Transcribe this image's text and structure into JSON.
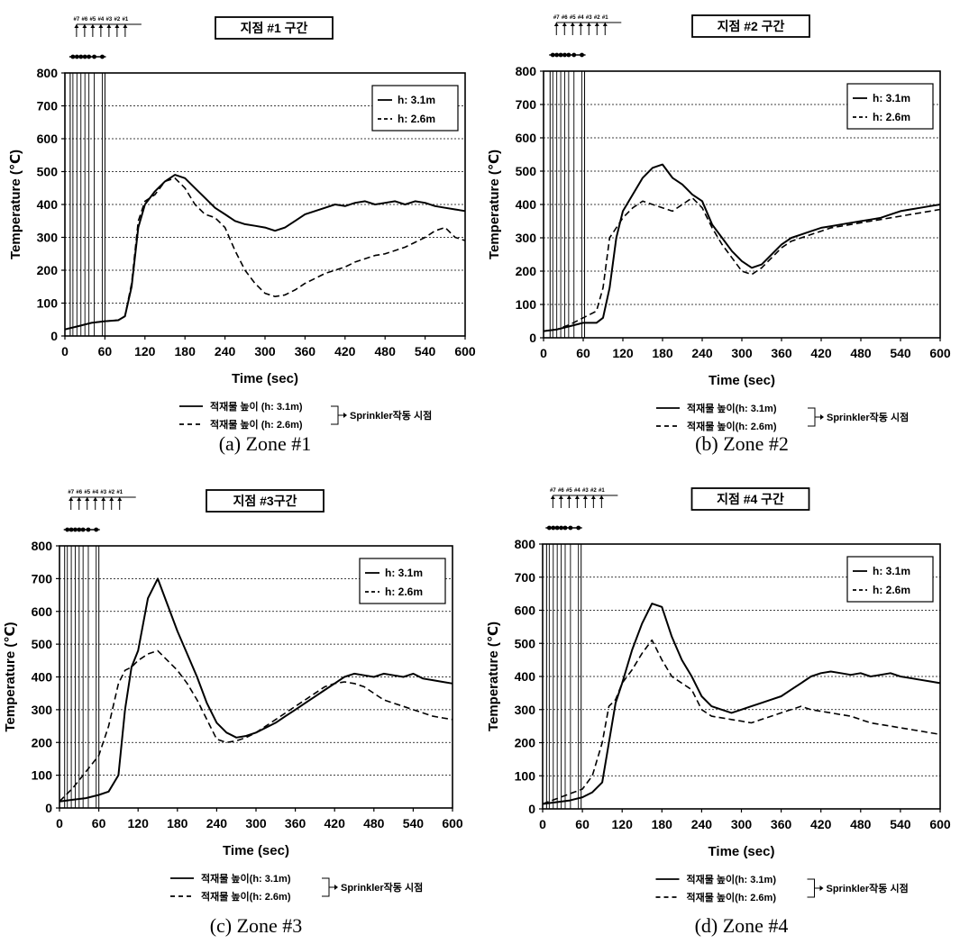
{
  "chart_data": [
    {
      "type": "line",
      "title": "지점 #1 구간",
      "caption": "(a)  Zone #1",
      "xlabel": "Time (sec)",
      "ylabel": "Temperature (℃)",
      "xlim": [
        0,
        600
      ],
      "ylim": [
        0,
        800
      ],
      "xticks": [
        "0",
        "60",
        "120",
        "180",
        "240",
        "300",
        "360",
        "420",
        "480",
        "540",
        "600"
      ],
      "yticks": [
        "0",
        "100",
        "200",
        "300",
        "400",
        "500",
        "600",
        "700",
        "800"
      ],
      "grid": true,
      "legend_position": "top-right",
      "legend": [
        "h: 3.1m",
        "h: 2.6m"
      ],
      "bottom_legend": [
        "적재물 높이 (h: 3.1m)",
        "적재물 높이 (h: 2.6m)"
      ],
      "sprinkler_label": "Sprinkler작동 시점",
      "top_marker_labels": [
        "#7",
        "#6",
        "#5",
        "#4",
        "#3",
        "#2",
        "#1"
      ],
      "sprinkler_times": [
        12,
        18,
        24,
        30,
        36,
        44,
        56
      ],
      "series": [
        {
          "name": "h: 3.1m",
          "style": "solid",
          "x": [
            0,
            20,
            40,
            60,
            80,
            90,
            100,
            110,
            120,
            135,
            150,
            165,
            180,
            195,
            210,
            225,
            240,
            255,
            270,
            285,
            300,
            315,
            330,
            345,
            360,
            375,
            390,
            405,
            420,
            435,
            450,
            465,
            480,
            495,
            510,
            525,
            540,
            555,
            570,
            585,
            600
          ],
          "y": [
            20,
            30,
            40,
            45,
            48,
            60,
            150,
            330,
            400,
            440,
            470,
            490,
            480,
            450,
            420,
            390,
            370,
            350,
            340,
            335,
            330,
            320,
            330,
            350,
            370,
            380,
            390,
            400,
            395,
            405,
            410,
            400,
            405,
            410,
            400,
            410,
            405,
            395,
            390,
            385,
            380
          ]
        },
        {
          "name": "h: 2.6m",
          "style": "dashed",
          "x": [
            0,
            20,
            40,
            60,
            80,
            90,
            100,
            110,
            120,
            135,
            150,
            165,
            180,
            195,
            210,
            225,
            240,
            255,
            270,
            285,
            300,
            315,
            330,
            345,
            360,
            375,
            390,
            405,
            420,
            435,
            450,
            465,
            480,
            495,
            510,
            525,
            540,
            555,
            570,
            585,
            600
          ],
          "y": [
            20,
            30,
            40,
            45,
            48,
            60,
            160,
            350,
            410,
            430,
            470,
            480,
            450,
            400,
            370,
            360,
            330,
            260,
            200,
            160,
            130,
            120,
            125,
            140,
            160,
            175,
            190,
            200,
            210,
            225,
            235,
            245,
            250,
            260,
            270,
            285,
            300,
            320,
            330,
            300,
            290
          ]
        }
      ]
    },
    {
      "type": "line",
      "title": "지점 #2 구간",
      "caption": "(b)  Zone #2",
      "xlabel": "Time (sec)",
      "ylabel": "Temperature (℃)",
      "xlim": [
        0,
        600
      ],
      "ylim": [
        0,
        800
      ],
      "xticks": [
        "0",
        "60",
        "120",
        "180",
        "240",
        "300",
        "360",
        "420",
        "480",
        "540",
        "600"
      ],
      "yticks": [
        "0",
        "100",
        "200",
        "300",
        "400",
        "500",
        "600",
        "700",
        "800"
      ],
      "grid": true,
      "legend_position": "top-right",
      "legend": [
        "h: 3.1m",
        "h: 2.6m"
      ],
      "bottom_legend": [
        "적재물 높이(h: 3.1m)",
        "적재물 높이(h: 2.6m)"
      ],
      "sprinkler_label": "Sprinkler작동 시점",
      "top_marker_labels": [
        "#7",
        "#6",
        "#5",
        "#4",
        "#3",
        "#2",
        "#1"
      ],
      "sprinkler_times": [
        14,
        20,
        26,
        32,
        38,
        46,
        58
      ],
      "series": [
        {
          "name": "h: 3.1m",
          "style": "solid",
          "x": [
            0,
            20,
            40,
            60,
            80,
            90,
            100,
            110,
            120,
            135,
            150,
            165,
            180,
            195,
            210,
            225,
            240,
            255,
            270,
            285,
            300,
            315,
            330,
            345,
            360,
            375,
            390,
            405,
            420,
            435,
            450,
            465,
            480,
            495,
            510,
            525,
            540,
            555,
            570,
            585,
            600
          ],
          "y": [
            20,
            25,
            35,
            45,
            45,
            60,
            150,
            300,
            380,
            430,
            480,
            510,
            520,
            480,
            460,
            430,
            410,
            340,
            300,
            260,
            230,
            210,
            220,
            250,
            280,
            300,
            310,
            320,
            330,
            335,
            340,
            345,
            350,
            355,
            360,
            370,
            380,
            385,
            390,
            395,
            400
          ]
        },
        {
          "name": "h: 2.6m",
          "style": "dashed",
          "x": [
            0,
            20,
            40,
            60,
            80,
            90,
            100,
            110,
            120,
            135,
            150,
            165,
            180,
            195,
            210,
            225,
            240,
            255,
            270,
            285,
            300,
            315,
            330,
            345,
            360,
            375,
            390,
            405,
            420,
            435,
            450,
            465,
            480,
            495,
            510,
            525,
            540,
            555,
            570,
            585,
            600
          ],
          "y": [
            20,
            25,
            40,
            60,
            80,
            150,
            300,
            330,
            360,
            390,
            410,
            400,
            390,
            380,
            400,
            420,
            390,
            330,
            280,
            240,
            200,
            190,
            210,
            240,
            270,
            290,
            300,
            310,
            320,
            330,
            335,
            340,
            345,
            350,
            355,
            360,
            365,
            370,
            375,
            380,
            385
          ]
        }
      ]
    },
    {
      "type": "line",
      "title": "지점 #3구간",
      "caption": "(c)  Zone #3",
      "xlabel": "Time (sec)",
      "ylabel": "Temperature (℃)",
      "xlim": [
        0,
        600
      ],
      "ylim": [
        0,
        800
      ],
      "xticks": [
        "0",
        "60",
        "120",
        "180",
        "240",
        "300",
        "360",
        "420",
        "480",
        "540",
        "600"
      ],
      "yticks": [
        "0",
        "100",
        "200",
        "300",
        "400",
        "500",
        "600",
        "700",
        "800"
      ],
      "grid": true,
      "legend_position": "top-right",
      "legend": [
        "h: 3.1m",
        "h: 2.6m"
      ],
      "bottom_legend": [
        "적재물 높이(h: 3.1m)",
        "적재물 높이(h: 2.6m)"
      ],
      "sprinkler_label": "Sprinkler작동 시점",
      "top_marker_labels": [
        "#7",
        "#6",
        "#5",
        "#4",
        "#3",
        "#2",
        "#1"
      ],
      "sprinkler_times": [
        12,
        18,
        24,
        30,
        36,
        44,
        56
      ],
      "series": [
        {
          "name": "h: 3.1m",
          "style": "solid",
          "x": [
            0,
            20,
            40,
            60,
            75,
            90,
            100,
            110,
            120,
            135,
            150,
            165,
            180,
            195,
            210,
            225,
            240,
            255,
            270,
            285,
            300,
            315,
            330,
            345,
            360,
            375,
            390,
            405,
            420,
            435,
            450,
            465,
            480,
            495,
            510,
            525,
            540,
            555,
            570,
            585,
            600
          ],
          "y": [
            20,
            25,
            30,
            40,
            50,
            100,
            300,
            430,
            480,
            640,
            700,
            620,
            540,
            470,
            400,
            320,
            260,
            230,
            215,
            220,
            230,
            245,
            260,
            280,
            300,
            320,
            340,
            360,
            380,
            400,
            410,
            405,
            400,
            410,
            405,
            400,
            410,
            395,
            390,
            385,
            380
          ]
        },
        {
          "name": "h: 2.6m",
          "style": "dashed",
          "x": [
            0,
            20,
            40,
            60,
            75,
            90,
            100,
            110,
            120,
            135,
            150,
            165,
            180,
            195,
            210,
            225,
            240,
            255,
            270,
            285,
            300,
            315,
            330,
            345,
            360,
            375,
            390,
            405,
            420,
            435,
            450,
            465,
            480,
            495,
            510,
            525,
            540,
            555,
            570,
            585,
            600
          ],
          "y": [
            20,
            60,
            110,
            160,
            250,
            380,
            420,
            430,
            450,
            470,
            480,
            450,
            420,
            380,
            330,
            270,
            210,
            200,
            205,
            215,
            230,
            250,
            270,
            290,
            310,
            330,
            350,
            370,
            380,
            385,
            380,
            370,
            350,
            330,
            320,
            310,
            300,
            290,
            280,
            275,
            270
          ]
        }
      ]
    },
    {
      "type": "line",
      "title": "지점 #4 구간",
      "caption": "(d)  Zone #4",
      "xlabel": "Time (sec)",
      "ylabel": "Temperature (℃)",
      "xlim": [
        0,
        600
      ],
      "ylim": [
        0,
        800
      ],
      "xticks": [
        "0",
        "60",
        "120",
        "180",
        "240",
        "300",
        "360",
        "420",
        "480",
        "540",
        "600"
      ],
      "yticks": [
        "0",
        "100",
        "200",
        "300",
        "400",
        "500",
        "600",
        "700",
        "800"
      ],
      "grid": true,
      "legend_position": "top-right",
      "legend": [
        "h: 3.1m",
        "h: 2.6m"
      ],
      "bottom_legend": [
        "적재물 높이(h: 3.1m)",
        "적재물 높이(h: 2.6m)"
      ],
      "sprinkler_label": "Sprinkler작동 시점",
      "top_marker_labels": [
        "#7",
        "#6",
        "#5",
        "#4",
        "#3",
        "#2",
        "#1"
      ],
      "sprinkler_times": [
        10,
        16,
        22,
        28,
        34,
        42,
        54
      ],
      "series": [
        {
          "name": "h: 3.1m",
          "style": "solid",
          "x": [
            0,
            20,
            40,
            60,
            75,
            90,
            100,
            110,
            120,
            135,
            150,
            165,
            180,
            195,
            210,
            225,
            240,
            255,
            270,
            285,
            300,
            315,
            330,
            345,
            360,
            375,
            390,
            405,
            420,
            435,
            450,
            465,
            480,
            495,
            510,
            525,
            540,
            555,
            570,
            585,
            600
          ],
          "y": [
            15,
            20,
            25,
            35,
            50,
            80,
            200,
            320,
            380,
            480,
            560,
            620,
            610,
            520,
            450,
            400,
            340,
            310,
            300,
            290,
            300,
            310,
            320,
            330,
            340,
            360,
            380,
            400,
            410,
            415,
            410,
            405,
            410,
            400,
            405,
            410,
            400,
            395,
            390,
            385,
            380
          ]
        },
        {
          "name": "h: 2.6m",
          "style": "dashed",
          "x": [
            0,
            20,
            40,
            60,
            75,
            90,
            100,
            110,
            120,
            135,
            150,
            165,
            180,
            195,
            210,
            225,
            240,
            255,
            270,
            285,
            300,
            315,
            330,
            345,
            360,
            375,
            390,
            405,
            420,
            435,
            450,
            465,
            480,
            495,
            510,
            525,
            540,
            555,
            570,
            585,
            600
          ],
          "y": [
            15,
            30,
            45,
            60,
            100,
            200,
            310,
            330,
            380,
            420,
            470,
            510,
            450,
            400,
            380,
            360,
            300,
            280,
            275,
            270,
            265,
            260,
            270,
            280,
            290,
            300,
            310,
            300,
            295,
            290,
            285,
            280,
            270,
            260,
            255,
            250,
            245,
            240,
            235,
            230,
            225
          ]
        }
      ]
    }
  ]
}
